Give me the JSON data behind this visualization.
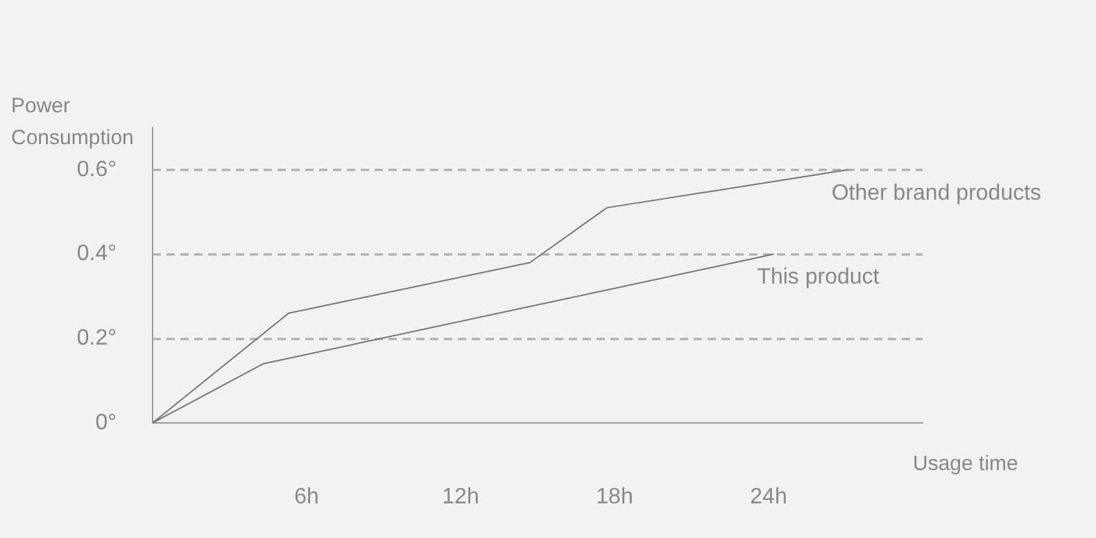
{
  "chart_data": {
    "type": "line",
    "xlabel": "Usage time",
    "ylabel": "Power Consumption",
    "xlim": [
      0,
      30
    ],
    "xticks": [
      {
        "value": 6,
        "label": "6h"
      },
      {
        "value": 12,
        "label": "12h"
      },
      {
        "value": 18,
        "label": "18h"
      },
      {
        "value": 24,
        "label": "24h"
      }
    ],
    "ylim": [
      0,
      0.7
    ],
    "yticks": [
      {
        "value": 0,
        "label": "0°"
      },
      {
        "value": 0.2,
        "label": "0.2°"
      },
      {
        "value": 0.4,
        "label": "0.4°"
      },
      {
        "value": 0.6,
        "label": "0.6°"
      }
    ],
    "grid": "y",
    "legend": false,
    "marker": "none",
    "line_style": "solid",
    "series": [
      {
        "name": "Other brand products",
        "color": "#777777",
        "x": [
          0,
          5.3,
          14.7,
          17.7,
          27.1
        ],
        "values": [
          0,
          0.26,
          0.38,
          0.51,
          0.6
        ]
      },
      {
        "name": "This product",
        "color": "#777777",
        "x": [
          0,
          4.3,
          24.2
        ],
        "values": [
          0,
          0.14,
          0.4
        ]
      }
    ]
  }
}
